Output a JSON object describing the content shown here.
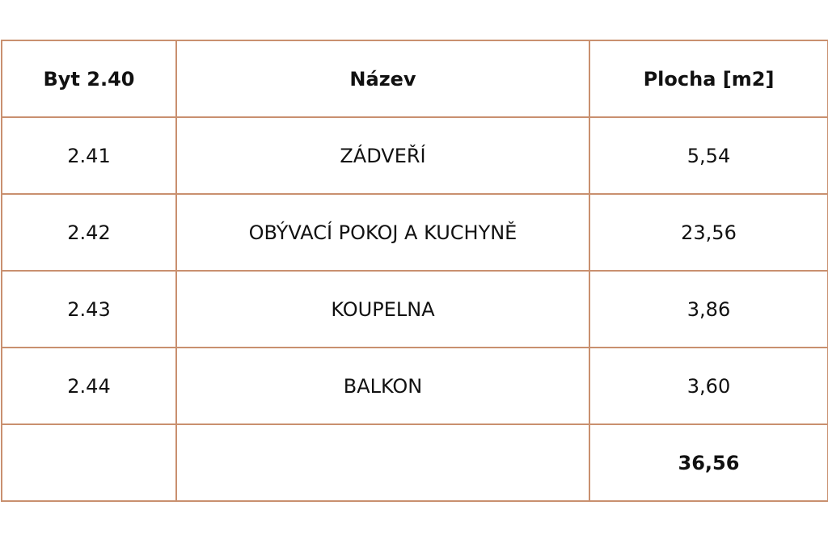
{
  "table": {
    "headers": [
      "Byt 2.40",
      "Název",
      "Plocha [m2]"
    ],
    "rows": [
      [
        "2.41",
        "ZÁDVEŘÍ",
        "5,54"
      ],
      [
        "2.42",
        "OBÝVACÍ POKOJ A KUCHYNĚ",
        "23,56"
      ],
      [
        "2.43",
        "KOUPELNA",
        "3,86"
      ],
      [
        "2.44",
        "BALKON",
        "3,60"
      ]
    ],
    "total": "36,56"
  },
  "colors": {
    "border": "#c9906f"
  }
}
